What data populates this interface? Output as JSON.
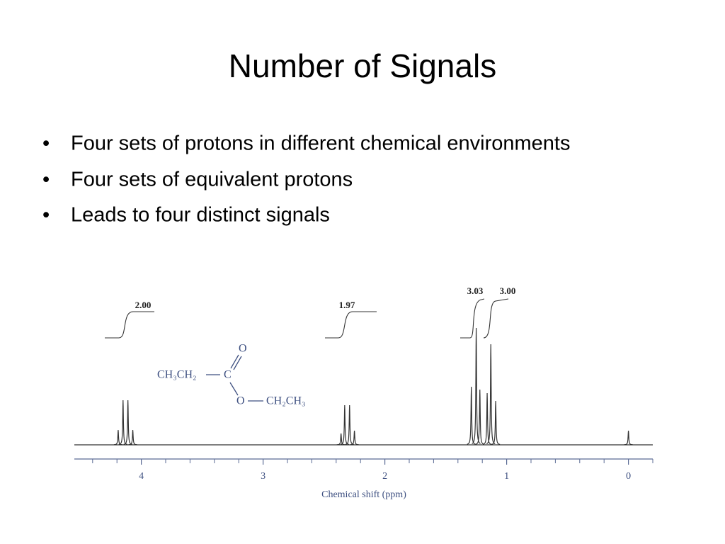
{
  "slide": {
    "title": "Number of Signals",
    "bullets": [
      "Four sets of protons in different chemical environments",
      "Four sets of equivalent protons",
      "Leads to four distinct signals"
    ]
  },
  "molecule": {
    "left": "CH₃CH₂",
    "carbon": "C",
    "carbonyl_oxygen": "O",
    "ester_oxygen": "O",
    "right": "CH₂CH₃"
  },
  "chart_data": {
    "type": "spectrum",
    "xlabel": "Chemical shift (ppm)",
    "color": "#333333",
    "xlim": [
      4.55,
      -0.2
    ],
    "xticks": [
      4,
      3,
      2,
      1,
      0
    ],
    "xminorticks": [
      4.4,
      4.2,
      3.8,
      3.6,
      3.4,
      3.2,
      2.8,
      2.6,
      2.4,
      2.2,
      1.8,
      1.6,
      1.4,
      1.2,
      0.8,
      0.6,
      0.4,
      0.2,
      -0.2
    ],
    "ylim": [
      0,
      230
    ],
    "x": [
      4.19,
      4.15,
      4.11,
      4.07,
      2.36,
      2.33,
      2.29,
      2.25,
      1.29,
      1.25,
      1.22,
      1.16,
      1.13,
      1.09,
      0
    ],
    "values": [
      21,
      63,
      63,
      21,
      16,
      56,
      56,
      20,
      82,
      165,
      78,
      73,
      142,
      62,
      20
    ],
    "integrals": [
      "2.00",
      "1.97",
      "3.03",
      "3.00"
    ]
  }
}
